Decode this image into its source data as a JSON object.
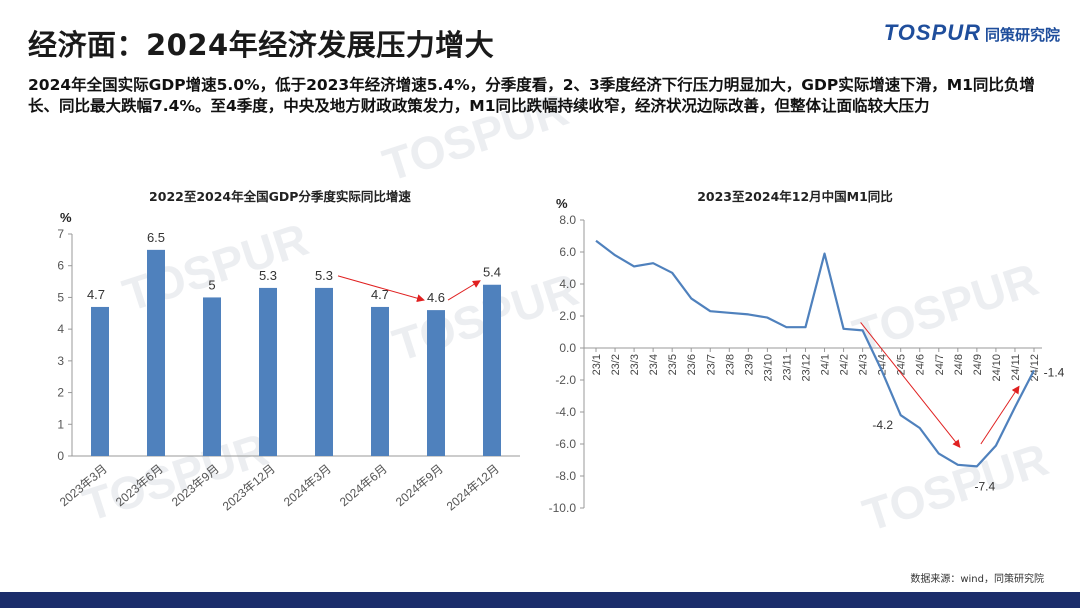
{
  "page": {
    "title": "经济面：2024年经济发展压力增大",
    "summary": "2024年全国实际GDP增速5.0%，低于2023年经济增速5.4%，分季度看，2、3季度经济下行压力明显加大，GDP实际增速下滑，M1同比负增长、同比最大跌幅7.4%。至4季度，中央及地方财政政策发力，M1同比跌幅持续收窄，经济状况边际改善，但整体让面临较大压力",
    "source": "数据来源：wind，同策研究院"
  },
  "logo": {
    "brand": "TOSPUR",
    "cn": "同策研究院",
    "watermark": "TOSPUR 同策长租公寓专项研究"
  },
  "colors": {
    "bar": "#4f81bd",
    "line": "#4f81bd",
    "arrow": "#e02020",
    "footer": "#1b2d6b"
  },
  "chart_data": [
    {
      "type": "bar",
      "title": "2022至2024年全国GDP分季度实际同比增速",
      "ylabel": "%",
      "ylim": [
        0,
        7
      ],
      "yticks": [
        "0",
        "1",
        "2",
        "3",
        "4",
        "5",
        "6",
        "7"
      ],
      "categories": [
        "2023年3月",
        "2023年6月",
        "2023年9月",
        "2023年12月",
        "2024年3月",
        "2024年6月",
        "2024年9月",
        "2024年12月"
      ],
      "values": [
        4.7,
        6.5,
        5,
        5.3,
        5.3,
        4.7,
        4.6,
        5.4
      ],
      "data_labels": [
        "4.7",
        "6.5",
        "5",
        "5.3",
        "5.3",
        "4.7",
        "4.6",
        "5.4"
      ],
      "grid": false
    },
    {
      "type": "line",
      "title": "2023至2024年12月中国M1同比",
      "ylabel": "%",
      "ylim": [
        -10,
        8
      ],
      "yticks": [
        "8.0",
        "6.0",
        "4.0",
        "2.0",
        "0.0",
        "-2.0",
        "-4.0",
        "-6.0",
        "-8.0",
        "-10.0"
      ],
      "x": [
        "23/1",
        "23/2",
        "23/3",
        "23/4",
        "23/5",
        "23/6",
        "23/7",
        "23/8",
        "23/9",
        "23/10",
        "23/11",
        "23/12",
        "24/1",
        "24/2",
        "24/3",
        "24/4",
        "24/5",
        "24/6",
        "24/7",
        "24/8",
        "24/9",
        "24/10",
        "24/11",
        "24/12"
      ],
      "values": [
        6.7,
        5.8,
        5.1,
        5.3,
        4.7,
        3.1,
        2.3,
        2.2,
        2.1,
        1.9,
        1.3,
        1.3,
        5.9,
        1.2,
        1.1,
        -1.4,
        -4.2,
        -5.0,
        -6.6,
        -7.3,
        -7.4,
        -6.1,
        -3.7,
        -1.4
      ],
      "annotations": [
        "-4.2",
        "-7.4",
        "-1.4"
      ],
      "grid": false
    }
  ]
}
